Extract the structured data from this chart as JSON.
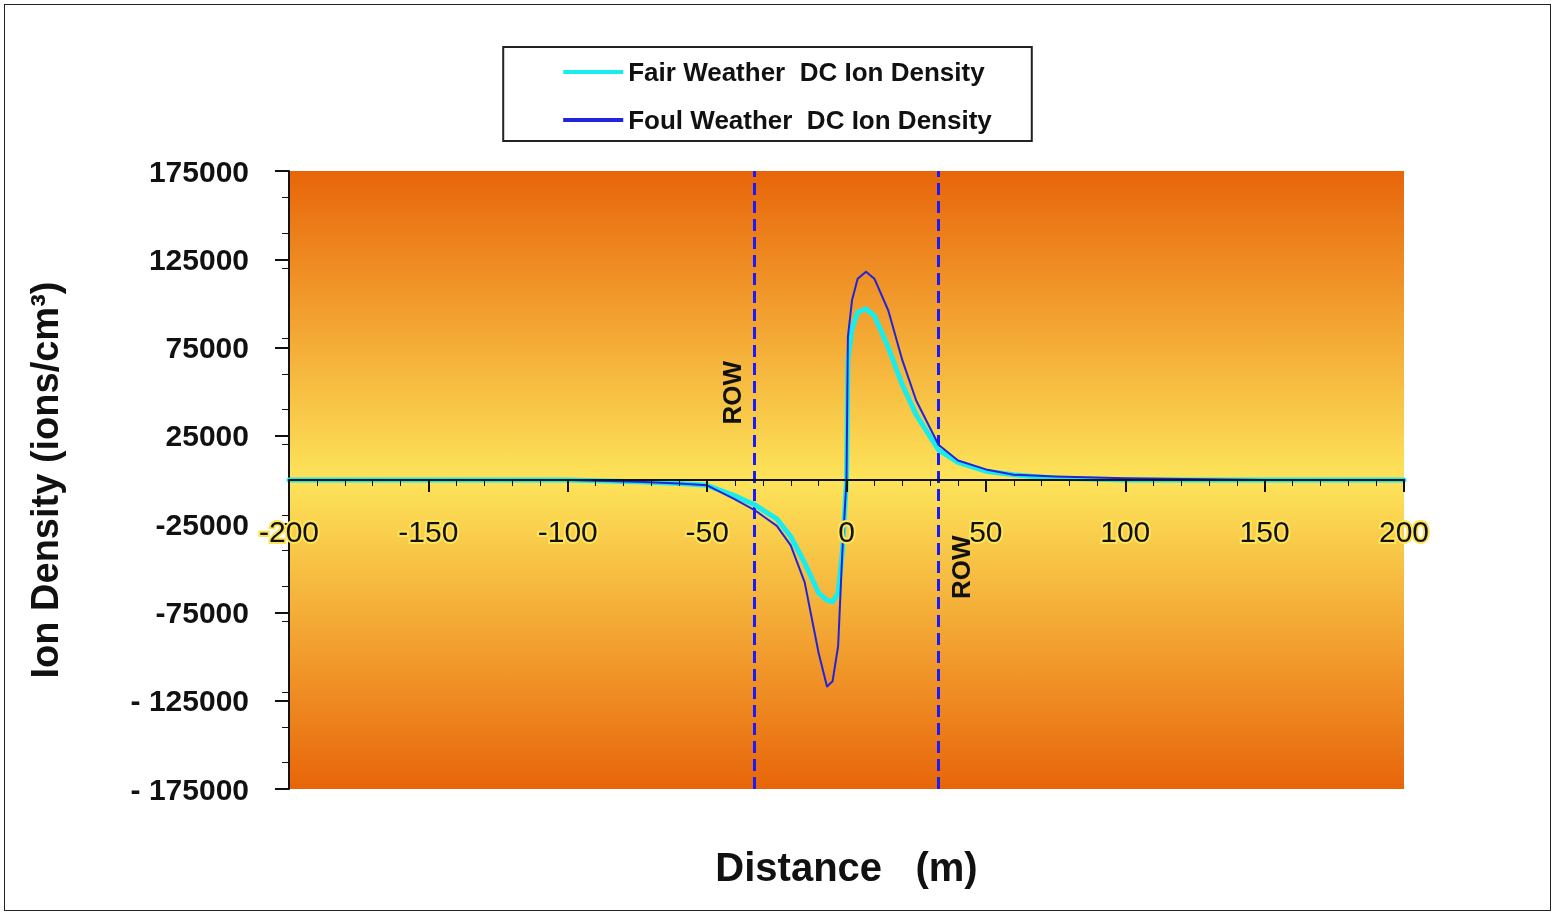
{
  "chart_data": {
    "type": "line",
    "xlabel": "Distance   (m)",
    "ylabel": "Ion Density (ions/cm³)",
    "xlim": [
      -200,
      200
    ],
    "xticks": [
      -200,
      -150,
      -100,
      -50,
      0,
      50,
      100,
      150,
      200
    ],
    "ylim": [
      -175000,
      175000
    ],
    "yticks": [
      {
        "value": -175000,
        "label": "- 175000"
      },
      {
        "value": -125000,
        "label": "- 125000"
      },
      -75000,
      -25000,
      25000,
      75000,
      125000,
      175000
    ],
    "x": [
      -200,
      -150,
      -100,
      -75,
      -60,
      -50,
      -40,
      -33,
      -25,
      -20,
      -15,
      -10,
      -7,
      -5,
      -3,
      -1.5,
      0,
      0.5,
      2,
      4,
      7,
      10,
      15,
      20,
      25,
      33,
      40,
      50,
      60,
      75,
      100,
      150,
      200
    ],
    "series": [
      {
        "name": "Fair Weather  DC Ion Density",
        "color": "#19ecec",
        "values": [
          0,
          0,
          0,
          -1000,
          -2000,
          -3000,
          -9000,
          -14000,
          -22000,
          -32000,
          -47000,
          -64000,
          -68000,
          -69000,
          -64000,
          -41000,
          0,
          68000,
          86000,
          95000,
          97000,
          93000,
          75000,
          54000,
          37000,
          17000,
          10000,
          5000,
          3000,
          1000,
          0,
          0,
          0
        ]
      },
      {
        "name": "Foul Weather  DC Ion Density",
        "color": "#2323d9",
        "values": [
          0,
          0,
          0,
          -1000,
          -2000,
          -3000,
          -11000,
          -17000,
          -26000,
          -37000,
          -58000,
          -98000,
          -117000,
          -114000,
          -94000,
          -41000,
          0,
          81000,
          102000,
          114000,
          118000,
          114000,
          96000,
          68000,
          45000,
          20000,
          11000,
          6000,
          3000,
          2000,
          1000,
          0,
          0
        ]
      }
    ],
    "ref_lines": [
      {
        "axis": "x",
        "value": -33,
        "label": "ROW",
        "color": "#1a1aff",
        "line_style": "dashed"
      },
      {
        "axis": "x",
        "value": 33,
        "label": "ROW",
        "color": "#1a1aff",
        "line_style": "dashed"
      }
    ],
    "legend": "top",
    "grid": false,
    "marker": "none",
    "line_style": "solid"
  }
}
